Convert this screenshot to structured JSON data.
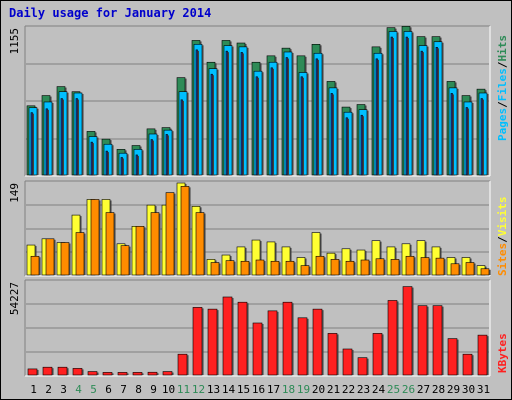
{
  "title": "Daily usage for January 2014",
  "colors": {
    "hits": "#2e8b57",
    "files": "#00bfff",
    "pages": "#1c3aa0",
    "visits": "#ffff33",
    "sites": "#ff8c00",
    "kbytes": "#ff2020",
    "weekend_day": "#2e8b57",
    "weekday": "#000000"
  },
  "chart_data": [
    {
      "type": "bar",
      "panel": "hits-files-pages",
      "ymax_label": "1155",
      "ylim": [
        0,
        1155
      ],
      "legend": [
        "Pages",
        "/",
        "Files",
        "/",
        "Hits"
      ],
      "categories": [
        "1",
        "2",
        "3",
        "4",
        "5",
        "6",
        "7",
        "8",
        "9",
        "10",
        "11",
        "12",
        "13",
        "14",
        "15",
        "16",
        "17",
        "18",
        "19",
        "20",
        "21",
        "22",
        "23",
        "24",
        "25",
        "26",
        "27",
        "28",
        "29",
        "30",
        "31"
      ],
      "series": [
        {
          "name": "Hits",
          "values": [
            540,
            620,
            690,
            650,
            340,
            280,
            200,
            230,
            360,
            370,
            760,
            1050,
            880,
            1050,
            1030,
            880,
            930,
            990,
            930,
            1020,
            730,
            530,
            550,
            1000,
            1150,
            1160,
            1080,
            1080,
            730,
            620,
            670
          ]
        },
        {
          "name": "Files",
          "values": [
            525,
            570,
            650,
            640,
            300,
            240,
            170,
            200,
            320,
            350,
            650,
            1020,
            830,
            1010,
            1000,
            810,
            880,
            960,
            800,
            950,
            680,
            490,
            510,
            950,
            1120,
            1120,
            1010,
            1040,
            680,
            570,
            640
          ]
        },
        {
          "name": "Pages",
          "values": [
            510,
            540,
            620,
            620,
            280,
            210,
            160,
            180,
            300,
            340,
            610,
            1000,
            810,
            990,
            980,
            790,
            860,
            940,
            790,
            930,
            660,
            470,
            490,
            930,
            1100,
            1100,
            990,
            1020,
            660,
            550,
            620
          ]
        }
      ]
    },
    {
      "type": "bar",
      "panel": "visits-sites",
      "ymax_label": "149",
      "ylim": [
        0,
        149
      ],
      "legend": [
        "Sites",
        "/",
        "Visits"
      ],
      "categories": [
        "1",
        "2",
        "3",
        "4",
        "5",
        "6",
        "7",
        "8",
        "9",
        "10",
        "11",
        "12",
        "13",
        "14",
        "15",
        "16",
        "17",
        "18",
        "19",
        "20",
        "21",
        "22",
        "23",
        "24",
        "25",
        "26",
        "27",
        "28",
        "29",
        "30",
        "31"
      ],
      "series": [
        {
          "name": "Visits",
          "values": [
            48,
            58,
            52,
            96,
            121,
            121,
            50,
            78,
            112,
            112,
            152,
            110,
            25,
            32,
            45,
            56,
            53,
            45,
            28,
            68,
            35,
            42,
            40,
            55,
            45,
            50,
            55,
            45,
            28,
            28,
            15
          ]
        },
        {
          "name": "Sites",
          "values": [
            30,
            58,
            52,
            68,
            121,
            100,
            47,
            78,
            100,
            132,
            142,
            100,
            20,
            23,
            22,
            24,
            22,
            22,
            15,
            30,
            25,
            22,
            24,
            26,
            25,
            30,
            28,
            27,
            18,
            20,
            10
          ]
        }
      ]
    },
    {
      "type": "bar",
      "panel": "kbytes",
      "ymax_label": "54227",
      "ylim": [
        0,
        54227
      ],
      "legend": [
        "KBytes"
      ],
      "categories": [
        "1",
        "2",
        "3",
        "4",
        "5",
        "6",
        "7",
        "8",
        "9",
        "10",
        "11",
        "12",
        "13",
        "14",
        "15",
        "16",
        "17",
        "18",
        "19",
        "20",
        "21",
        "22",
        "23",
        "24",
        "25",
        "26",
        "27",
        "28",
        "29",
        "30",
        "31"
      ],
      "series": [
        {
          "name": "KBytes",
          "values": [
            3500,
            4500,
            4500,
            3800,
            2000,
            1500,
            1500,
            1500,
            1600,
            2000,
            12000,
            39000,
            38000,
            45000,
            42000,
            30000,
            37000,
            42000,
            33000,
            38000,
            24000,
            15000,
            10000,
            24000,
            43000,
            51000,
            40000,
            40000,
            21000,
            12000,
            23000
          ]
        }
      ]
    }
  ],
  "x_axis": {
    "days": [
      "1",
      "2",
      "3",
      "4",
      "5",
      "6",
      "7",
      "8",
      "9",
      "10",
      "11",
      "12",
      "13",
      "14",
      "15",
      "16",
      "17",
      "18",
      "19",
      "20",
      "21",
      "22",
      "23",
      "24",
      "25",
      "26",
      "27",
      "28",
      "29",
      "30",
      "31"
    ],
    "weekend_days": [
      "4",
      "5",
      "11",
      "12",
      "18",
      "19",
      "25",
      "26"
    ]
  }
}
